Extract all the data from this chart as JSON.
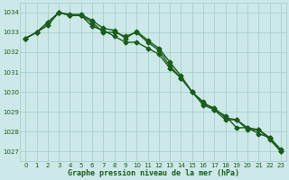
{
  "xlabel": "Graphe pression niveau de la mer (hPa)",
  "xlim": [
    -0.5,
    23.5
  ],
  "ylim": [
    1026.5,
    1034.5
  ],
  "yticks": [
    1027,
    1028,
    1029,
    1030,
    1031,
    1032,
    1033,
    1034
  ],
  "xticks": [
    0,
    1,
    2,
    3,
    4,
    5,
    6,
    7,
    8,
    9,
    10,
    11,
    12,
    13,
    14,
    15,
    16,
    17,
    18,
    19,
    20,
    21,
    22,
    23
  ],
  "bg_color": "#cce8e8",
  "grid_color": "#aacece",
  "line_color": "#1a5c1a",
  "line1": [
    1032.7,
    1033.0,
    1033.5,
    1034.0,
    1033.85,
    1033.85,
    1033.5,
    1033.0,
    1033.0,
    1032.8,
    1033.0,
    1032.5,
    1032.1,
    1031.3,
    1030.7,
    1030.0,
    1029.35,
    1029.1,
    1028.6,
    1028.6,
    1028.1,
    1028.1,
    1027.6,
    1027.0
  ],
  "line2": [
    1032.7,
    1033.0,
    1033.35,
    1034.0,
    1033.85,
    1033.85,
    1033.3,
    1033.1,
    1032.8,
    1032.5,
    1032.5,
    1032.2,
    1031.9,
    1031.2,
    1030.7,
    1030.0,
    1029.5,
    1029.1,
    1028.8,
    1028.2,
    1028.2,
    1027.9,
    1027.7,
    1027.0
  ],
  "line3": [
    1032.7,
    1033.0,
    1033.5,
    1034.0,
    1033.9,
    1033.9,
    1033.6,
    1033.2,
    1033.1,
    1032.7,
    1033.05,
    1032.6,
    1032.2,
    1031.5,
    1030.8,
    1030.0,
    1029.4,
    1029.2,
    1028.7,
    1028.6,
    1028.2,
    1028.1,
    1027.7,
    1027.1
  ],
  "marker": "D",
  "markersize": 2.5,
  "linewidth": 1.0
}
